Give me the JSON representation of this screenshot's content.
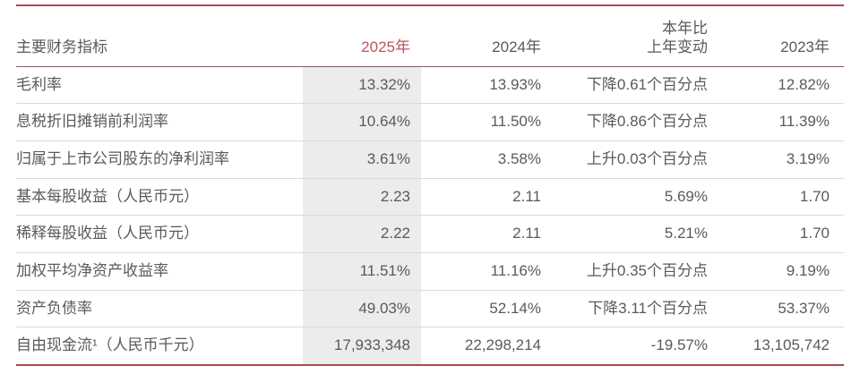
{
  "table": {
    "colors": {
      "accent_red_lines": "#aa4b55",
      "header_2025_red": "#bf5560",
      "body_text_gray": "#595a5c",
      "highlight_column_bg": "#ececed",
      "row_divider_gray": "#dadada"
    },
    "header": {
      "label": "主要财务指标",
      "col_2025": "2025年",
      "col_2024": "2024年",
      "col_change_line1": "本年比",
      "col_change_line2": "上年变动",
      "col_2023": "2023年"
    },
    "rows": [
      {
        "label": "毛利率",
        "y2025": "13.32%",
        "y2024": "13.93%",
        "change": "下降0.61个百分点",
        "y2023": "12.82%"
      },
      {
        "label": "息税折旧摊销前利润率",
        "y2025": "10.64%",
        "y2024": "11.50%",
        "change": "下降0.86个百分点",
        "y2023": "11.39%"
      },
      {
        "label": "归属于上市公司股东的净利润率",
        "y2025": "3.61%",
        "y2024": "3.58%",
        "change": "上升0.03个百分点",
        "y2023": "3.19%"
      },
      {
        "label": "基本每股收益（人民币元）",
        "y2025": "2.23",
        "y2024": "2.11",
        "change": "5.69%",
        "y2023": "1.70"
      },
      {
        "label": "稀释每股收益（人民币元）",
        "y2025": "2.22",
        "y2024": "2.11",
        "change": "5.21%",
        "y2023": "1.70"
      },
      {
        "label": "加权平均净资产收益率",
        "y2025": "11.51%",
        "y2024": "11.16%",
        "change": "上升0.35个百分点",
        "y2023": "9.19%"
      },
      {
        "label": "资产负债率",
        "y2025": "49.03%",
        "y2024": "52.14%",
        "change": "下降3.11个百分点",
        "y2023": "53.37%"
      },
      {
        "label": "自由现金流¹（人民币千元）",
        "y2025": "17,933,348",
        "y2024": "22,298,214",
        "change": "-19.57%",
        "y2023": "13,105,742"
      }
    ]
  }
}
